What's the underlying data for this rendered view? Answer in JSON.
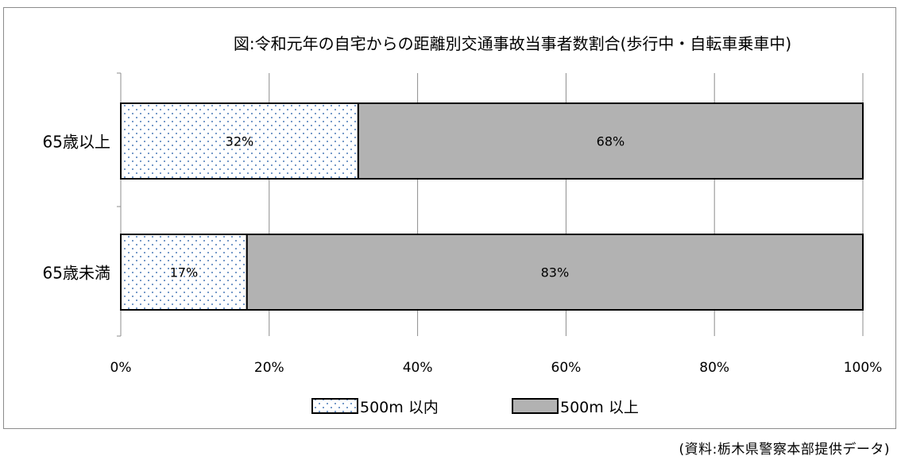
{
  "chart_data": {
    "type": "bar",
    "orientation": "horizontal",
    "stacked": "percent",
    "title": "図:令和元年の自宅からの距離別交通事故当事者数割合(歩行中・自転車乗車中)",
    "categories": [
      "65歳以上",
      "65歳未満"
    ],
    "series": [
      {
        "name": "500m 以内",
        "values": [
          32,
          17
        ],
        "labels": [
          "32%",
          "17%"
        ],
        "fill": "dots"
      },
      {
        "name": "500m 以上",
        "values": [
          68,
          83
        ],
        "labels": [
          "68%",
          "83%"
        ],
        "fill": "gray"
      }
    ],
    "xlim": [
      0,
      100
    ],
    "xticks": [
      0,
      20,
      40,
      60,
      80,
      100
    ],
    "xtick_labels": [
      "0%",
      "20%",
      "40%",
      "60%",
      "80%",
      "100%"
    ],
    "grid": "vertical",
    "legend": "bottom"
  },
  "colors": {
    "bar_gray": "#b2b2b2",
    "dot_blue": "#4a7ab8",
    "grid": "#8c8c8c"
  },
  "source_note": "(資料:栃木県警察本部提供データ)"
}
